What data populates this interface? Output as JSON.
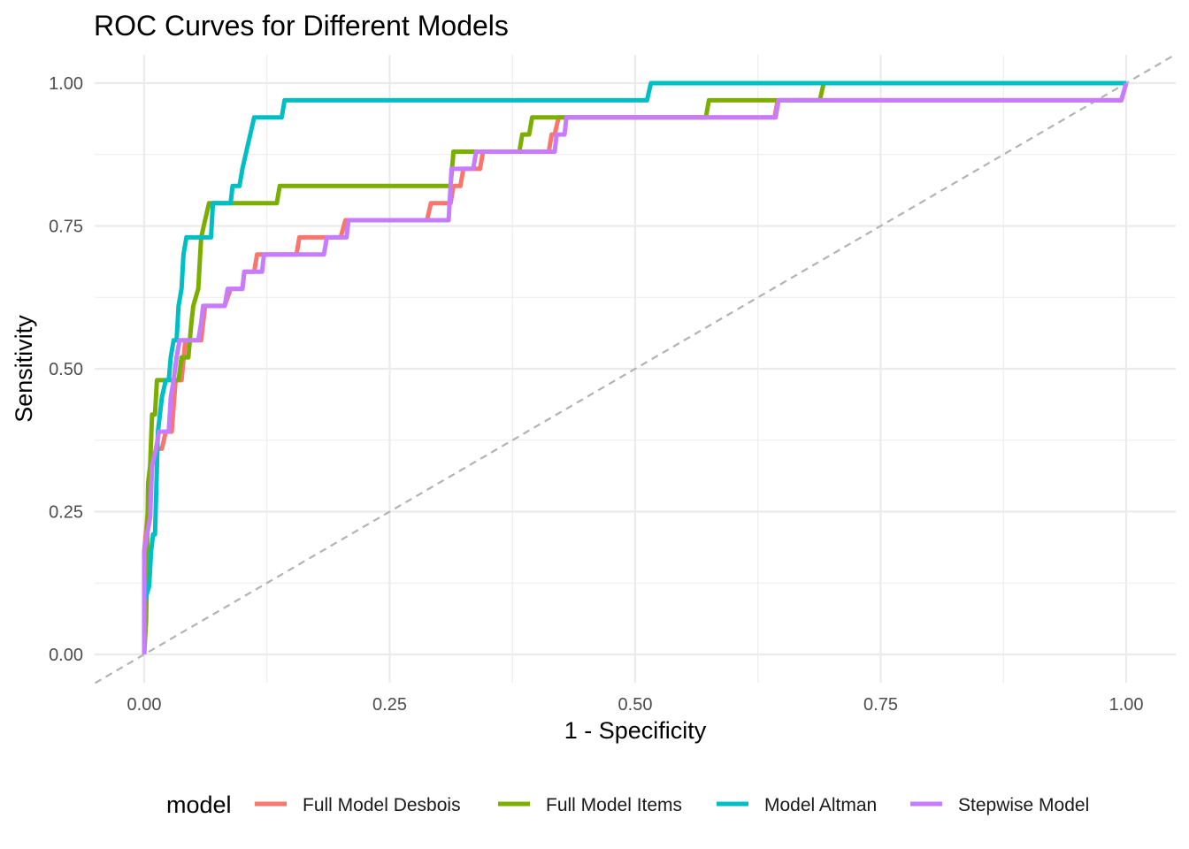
{
  "chart_data": {
    "type": "line",
    "title": "ROC Curves for Different Models",
    "xlabel": "1 - Specificity",
    "ylabel": "Sensitivity",
    "xlim": [
      -0.05,
      1.05
    ],
    "ylim": [
      -0.05,
      1.05
    ],
    "x_ticks": [
      0,
      0.25,
      0.5,
      0.75,
      1
    ],
    "x_tick_labels": [
      "0.00",
      "0.25",
      "0.50",
      "0.75",
      "1.00"
    ],
    "y_ticks": [
      0,
      0.25,
      0.5,
      0.75,
      1
    ],
    "y_tick_labels": [
      "0.00",
      "0.25",
      "0.50",
      "0.75",
      "1.00"
    ],
    "grid": true,
    "legend": {
      "title": "model",
      "position": "bottom"
    },
    "reference_line": {
      "from": [
        0,
        0
      ],
      "to": [
        1,
        1
      ],
      "style": "dashed",
      "color": "#b3b3b3"
    },
    "series": [
      {
        "name": "Full Model Desbois",
        "color": "#F8766D",
        "points": [
          [
            0,
            0
          ],
          [
            0,
            0.18
          ],
          [
            0.008,
            0.33
          ],
          [
            0.012,
            0.36
          ],
          [
            0.018,
            0.36
          ],
          [
            0.022,
            0.39
          ],
          [
            0.028,
            0.39
          ],
          [
            0.032,
            0.48
          ],
          [
            0.038,
            0.48
          ],
          [
            0.042,
            0.55
          ],
          [
            0.058,
            0.55
          ],
          [
            0.062,
            0.61
          ],
          [
            0.082,
            0.61
          ],
          [
            0.088,
            0.64
          ],
          [
            0.1,
            0.64
          ],
          [
            0.102,
            0.67
          ],
          [
            0.112,
            0.67
          ],
          [
            0.115,
            0.7
          ],
          [
            0.155,
            0.7
          ],
          [
            0.158,
            0.73
          ],
          [
            0.2,
            0.73
          ],
          [
            0.205,
            0.76
          ],
          [
            0.288,
            0.76
          ],
          [
            0.292,
            0.79
          ],
          [
            0.312,
            0.79
          ],
          [
            0.315,
            0.82
          ],
          [
            0.322,
            0.82
          ],
          [
            0.325,
            0.85
          ],
          [
            0.342,
            0.85
          ],
          [
            0.345,
            0.88
          ],
          [
            0.412,
            0.88
          ],
          [
            0.415,
            0.91
          ],
          [
            0.418,
            0.91
          ],
          [
            0.422,
            0.94
          ],
          [
            0.642,
            0.94
          ],
          [
            0.645,
            0.97
          ],
          [
            0.995,
            0.97
          ],
          [
            1,
            1
          ]
        ]
      },
      {
        "name": "Full Model Items",
        "color": "#7CAE00",
        "points": [
          [
            0,
            0
          ],
          [
            0.002,
            0.06
          ],
          [
            0.004,
            0.3
          ],
          [
            0.006,
            0.33
          ],
          [
            0.008,
            0.42
          ],
          [
            0.011,
            0.42
          ],
          [
            0.013,
            0.48
          ],
          [
            0.035,
            0.48
          ],
          [
            0.038,
            0.52
          ],
          [
            0.045,
            0.52
          ],
          [
            0.048,
            0.58
          ],
          [
            0.05,
            0.61
          ],
          [
            0.055,
            0.64
          ],
          [
            0.058,
            0.73
          ],
          [
            0.062,
            0.76
          ],
          [
            0.066,
            0.79
          ],
          [
            0.135,
            0.79
          ],
          [
            0.138,
            0.82
          ],
          [
            0.312,
            0.82
          ],
          [
            0.315,
            0.88
          ],
          [
            0.382,
            0.88
          ],
          [
            0.385,
            0.91
          ],
          [
            0.392,
            0.91
          ],
          [
            0.395,
            0.94
          ],
          [
            0.572,
            0.94
          ],
          [
            0.575,
            0.97
          ],
          [
            0.688,
            0.97
          ],
          [
            0.692,
            1
          ],
          [
            1,
            1
          ]
        ]
      },
      {
        "name": "Model Altman",
        "color": "#00BFC4",
        "points": [
          [
            0,
            0
          ],
          [
            0,
            0.09
          ],
          [
            0.005,
            0.12
          ],
          [
            0.007,
            0.18
          ],
          [
            0.009,
            0.21
          ],
          [
            0.011,
            0.21
          ],
          [
            0.012,
            0.27
          ],
          [
            0.014,
            0.39
          ],
          [
            0.016,
            0.42
          ],
          [
            0.018,
            0.45
          ],
          [
            0.022,
            0.48
          ],
          [
            0.025,
            0.48
          ],
          [
            0.027,
            0.52
          ],
          [
            0.03,
            0.55
          ],
          [
            0.033,
            0.55
          ],
          [
            0.035,
            0.61
          ],
          [
            0.038,
            0.64
          ],
          [
            0.04,
            0.7
          ],
          [
            0.043,
            0.73
          ],
          [
            0.068,
            0.73
          ],
          [
            0.07,
            0.79
          ],
          [
            0.088,
            0.79
          ],
          [
            0.09,
            0.82
          ],
          [
            0.097,
            0.82
          ],
          [
            0.1,
            0.85
          ],
          [
            0.104,
            0.88
          ],
          [
            0.108,
            0.91
          ],
          [
            0.112,
            0.94
          ],
          [
            0.14,
            0.94
          ],
          [
            0.143,
            0.97
          ],
          [
            0.512,
            0.97
          ],
          [
            0.516,
            1
          ],
          [
            1,
            1
          ]
        ]
      },
      {
        "name": "Stepwise Model",
        "color": "#C77CFF",
        "points": [
          [
            0,
            0
          ],
          [
            0,
            0.18
          ],
          [
            0.006,
            0.24
          ],
          [
            0.008,
            0.33
          ],
          [
            0.012,
            0.36
          ],
          [
            0.015,
            0.39
          ],
          [
            0.025,
            0.39
          ],
          [
            0.027,
            0.45
          ],
          [
            0.03,
            0.48
          ],
          [
            0.033,
            0.52
          ],
          [
            0.036,
            0.55
          ],
          [
            0.055,
            0.55
          ],
          [
            0.058,
            0.58
          ],
          [
            0.06,
            0.61
          ],
          [
            0.082,
            0.61
          ],
          [
            0.085,
            0.64
          ],
          [
            0.1,
            0.64
          ],
          [
            0.102,
            0.67
          ],
          [
            0.12,
            0.67
          ],
          [
            0.122,
            0.7
          ],
          [
            0.183,
            0.7
          ],
          [
            0.186,
            0.73
          ],
          [
            0.206,
            0.73
          ],
          [
            0.208,
            0.76
          ],
          [
            0.31,
            0.76
          ],
          [
            0.313,
            0.85
          ],
          [
            0.335,
            0.85
          ],
          [
            0.338,
            0.88
          ],
          [
            0.418,
            0.88
          ],
          [
            0.42,
            0.91
          ],
          [
            0.428,
            0.91
          ],
          [
            0.43,
            0.94
          ],
          [
            0.643,
            0.94
          ],
          [
            0.646,
            0.97
          ],
          [
            0.995,
            0.97
          ],
          [
            1,
            1
          ]
        ]
      }
    ]
  }
}
